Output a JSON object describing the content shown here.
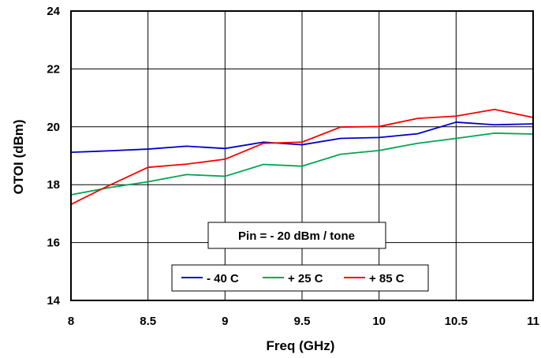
{
  "chart_data": {
    "type": "line",
    "xlabel": "Freq (GHz)",
    "ylabel": "OTOI (dBm)",
    "xlim": [
      8,
      11
    ],
    "ylim": [
      14,
      24
    ],
    "x_ticks": [
      "8",
      "8.5",
      "9",
      "9.5",
      "10",
      "10.5",
      "11"
    ],
    "y_ticks": [
      "14",
      "16",
      "18",
      "20",
      "22",
      "24"
    ],
    "grid": true,
    "annotation": "Pin = - 20 dBm / tone",
    "legend_position": "bottom-right",
    "x": [
      8,
      8.25,
      8.5,
      8.75,
      9,
      9.25,
      9.5,
      9.75,
      10,
      10.25,
      10.5,
      10.75,
      11
    ],
    "series": [
      {
        "name": "- 40 C",
        "color": "#0000cc",
        "values": [
          19.12,
          19.17,
          19.23,
          19.33,
          19.25,
          19.47,
          19.38,
          19.6,
          19.63,
          19.76,
          20.16,
          20.07,
          20.1
        ]
      },
      {
        "name": "+ 25 C",
        "color": "#00a651",
        "values": [
          17.65,
          17.9,
          18.1,
          18.35,
          18.29,
          18.7,
          18.64,
          19.05,
          19.18,
          19.43,
          19.6,
          19.78,
          19.75
        ]
      },
      {
        "name": "+ 85 C",
        "color": "#ff0000",
        "values": [
          17.32,
          17.98,
          18.6,
          18.71,
          18.88,
          19.43,
          19.47,
          19.99,
          20.01,
          20.29,
          20.37,
          20.6,
          20.32
        ]
      }
    ]
  }
}
